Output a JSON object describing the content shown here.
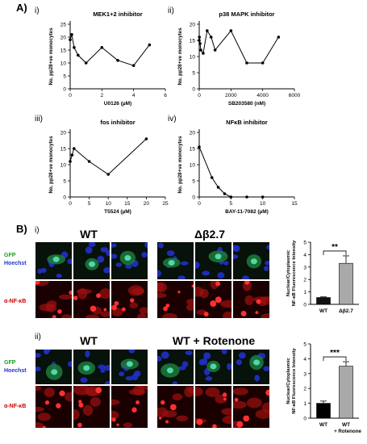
{
  "panel_a": {
    "label": "A)",
    "charts": [
      {
        "num": "i)",
        "title": "MEK1+2 inhibitor",
        "xlabel": "U0126 (µM)",
        "ylabel": "No. pp28+ve monocytes"
      },
      {
        "num": "ii)",
        "title": "p38 MAPK inhibitor",
        "xlabel": "SB203580 (nM)",
        "ylabel": "No. pp28+ve monocytes"
      },
      {
        "num": "iii)",
        "title": "fos inhibitor",
        "xlabel": "T5524 (µM)",
        "ylabel": "No. pp28+ve monocytes"
      },
      {
        "num": "iv)",
        "title": "NFκB inhibitor",
        "xlabel": "BAY-11-7082 (µM)",
        "ylabel": "No. pp28+ve monocytes"
      }
    ]
  },
  "panel_b": {
    "label": "B)",
    "sub_i": "i)",
    "sub_ii": "ii)",
    "row_i": {
      "left_condition": "WT",
      "right_condition": "Δβ2.7"
    },
    "row_ii": {
      "left_condition": "WT",
      "right_condition": "WT + Rotenone"
    },
    "channels": {
      "gfp": "GFP",
      "hoechst": "Hoechst",
      "nfkb": "α-NF-κB"
    },
    "bar_ylabel_1": "Nuclear/Cytoplasmic",
    "bar_ylabel_2": "NF-κB Fluorescence Intensity"
  },
  "colors": {
    "gfp_label": "#1a9c1a",
    "hoechst_label": "#2233cc",
    "nfkb_label": "#cc0000",
    "bar_grey": "#a9a9a9",
    "bar_black": "#000000"
  },
  "chart_data": [
    {
      "type": "line",
      "title": "MEK1+2 inhibitor",
      "xlabel": "U0126 (µM)",
      "ylabel": "No. pp28+ve monocytes",
      "xlim": [
        0,
        6
      ],
      "ylim": [
        0,
        25
      ],
      "xticks": [
        0,
        2,
        4,
        6
      ],
      "yticks": [
        0,
        5,
        10,
        15,
        20,
        25
      ],
      "x": [
        0,
        0.1,
        0.25,
        0.5,
        1,
        2,
        3,
        4,
        5
      ],
      "y": [
        19,
        21,
        16,
        13,
        10,
        16,
        11,
        9,
        17
      ]
    },
    {
      "type": "line",
      "title": "p38 MAPK inhibitor",
      "xlabel": "SB203580 (nM)",
      "ylabel": "No. pp28+ve monocytes",
      "xlim": [
        0,
        6000
      ],
      "ylim": [
        0,
        20
      ],
      "xticks": [
        0,
        2000,
        4000,
        6000
      ],
      "yticks": [
        0,
        5,
        10,
        15,
        20
      ],
      "x": [
        0,
        10,
        50,
        100,
        250,
        500,
        750,
        1000,
        2000,
        3000,
        4000,
        5000
      ],
      "y": [
        15,
        16,
        14,
        12,
        11,
        18,
        16,
        12,
        18,
        8,
        8,
        16
      ]
    },
    {
      "type": "line",
      "title": "fos inhibitor",
      "xlabel": "T5524 (µM)",
      "ylabel": "No. pp28+ve monocytes",
      "xlim": [
        0,
        25
      ],
      "ylim": [
        0,
        20
      ],
      "xticks": [
        0,
        5,
        10,
        15,
        20,
        25
      ],
      "yticks": [
        0,
        5,
        10,
        15,
        20
      ],
      "x": [
        0,
        0.5,
        1,
        5,
        10,
        20
      ],
      "y": [
        11,
        13,
        15,
        11,
        7,
        18
      ]
    },
    {
      "type": "line",
      "title": "NFκB inhibitor",
      "xlabel": "BAY-11-7082 (µM)",
      "ylabel": "No. pp28+ve monocytes",
      "xlim": [
        0,
        15
      ],
      "ylim": [
        0,
        20
      ],
      "xticks": [
        0,
        5,
        10,
        15
      ],
      "yticks": [
        0,
        5,
        10,
        15,
        20
      ],
      "x": [
        0,
        2,
        3,
        4,
        5,
        7.5,
        10
      ],
      "y": [
        15.5,
        6,
        3,
        1,
        0,
        0,
        0
      ]
    },
    {
      "type": "bar",
      "ylabel": "Nuclear/Cytoplasmic NF-κB Fluorescence Intensity",
      "categories": [
        "WT",
        "Δβ2.7"
      ],
      "values": [
        0.55,
        3.3
      ],
      "errors": [
        0.05,
        0.6
      ],
      "ylim": [
        0,
        5
      ],
      "yticks": [
        0,
        1,
        2,
        3,
        4,
        5
      ],
      "significance": "**"
    },
    {
      "type": "bar",
      "ylabel": "Nuclear/Cytoplasmic NF-κB Fluorescence Intensity",
      "categories": [
        "WT",
        "WT + Rotenone"
      ],
      "values": [
        1.0,
        3.5
      ],
      "errors": [
        0.15,
        0.3
      ],
      "ylim": [
        0,
        5
      ],
      "yticks": [
        0,
        1,
        2,
        3,
        4,
        5
      ],
      "significance": "***"
    }
  ]
}
